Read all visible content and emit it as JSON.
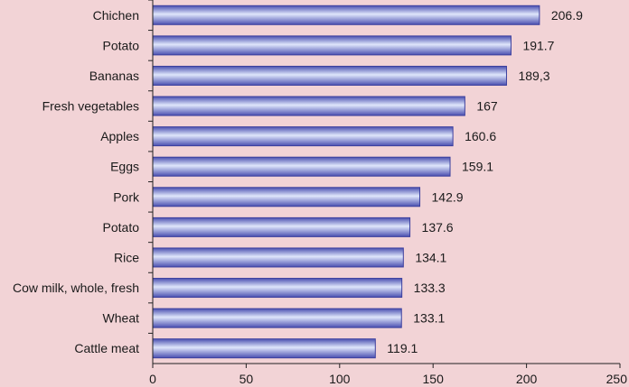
{
  "chart_data": {
    "type": "bar",
    "orientation": "horizontal",
    "categories": [
      "Chichen",
      "Potato",
      "Bananas",
      "Fresh vegetables",
      "Apples",
      "Eggs",
      "Pork",
      "Potato",
      "Rice",
      "Cow milk, whole, fresh",
      "Wheat",
      "Cattle meat"
    ],
    "values": [
      206.9,
      191.7,
      189.3,
      167,
      160.6,
      159.1,
      142.9,
      137.6,
      134.1,
      133.3,
      133.1,
      119.1
    ],
    "value_labels": [
      "206.9",
      "191.7",
      "189,3",
      "167",
      "160.6",
      "159.1",
      "142.9",
      "137.6",
      "134.1",
      "133.3",
      "133.1",
      "119.1"
    ],
    "xlim": [
      0,
      250
    ],
    "xticks": [
      0,
      50,
      100,
      150,
      200,
      250
    ],
    "grid": false,
    "legend": "none",
    "colors": {
      "background": "#f2d3d6",
      "bar_edge": "#3b3f9e",
      "bar_dark": "#4a4fb0",
      "bar_light": "#dfe6fb",
      "axis": "#222222"
    }
  }
}
